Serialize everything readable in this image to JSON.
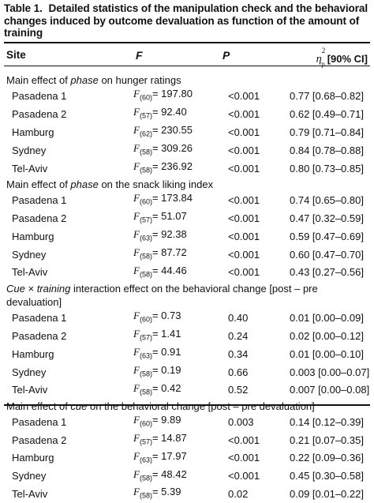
{
  "caption": {
    "label": "Table 1.",
    "text": "Detailed statistics of the manipulation check and the behavioral changes induced by outcome devaluation as function of the amount of training"
  },
  "header": {
    "site": "Site",
    "f": "F",
    "p": "P",
    "effect_symbol": "η",
    "effect_sup": "2",
    "effect_sub": "p",
    "ci": "[90% CI]"
  },
  "sections": [
    {
      "title_pre": "Main effect of ",
      "title_em": "phase",
      "title_post": " on hunger ratings",
      "rows": [
        {
          "site": "Pasadena 1",
          "df": "(60)",
          "f": "= 197.80",
          "p": "<0.001",
          "eta": "0.77 [0.68–0.82]"
        },
        {
          "site": "Pasadena 2",
          "df": "(57)",
          "f": "= 92.40",
          "p": "<0.001",
          "eta": "0.62 [0.49–0.71]"
        },
        {
          "site": "Hamburg",
          "df": "(62)",
          "f": "= 230.55",
          "p": "<0.001",
          "eta": "0.79 [0.71–0.84]"
        },
        {
          "site": "Sydney",
          "df": "(58)",
          "f": "= 309.26",
          "p": "<0.001",
          "eta": "0.84 [0.78–0.88]"
        },
        {
          "site": "Tel-Aviv",
          "df": "(58)",
          "f": "= 236.92",
          "p": "<0.001",
          "eta": "0.80 [0.73–0.85]"
        }
      ]
    },
    {
      "title_pre": "Main effect of ",
      "title_em": "phase",
      "title_post": " on the snack liking index",
      "rows": [
        {
          "site": "Pasadena 1",
          "df": "(60)",
          "f": "= 173.84",
          "p": "<0.001",
          "eta": "0.74 [0.65–0.80]"
        },
        {
          "site": "Pasadena 2",
          "df": "(57)",
          "f": "= 51.07",
          "p": "<0.001",
          "eta": "0.47 [0.32–0.59]"
        },
        {
          "site": "Hamburg",
          "df": "(63)",
          "f": "= 92.38",
          "p": "<0.001",
          "eta": "0.59 [0.47–0.69]"
        },
        {
          "site": "Sydney",
          "df": "(58)",
          "f": "= 87.72",
          "p": "<0.001",
          "eta": "0.60 [0.47–0.70]"
        },
        {
          "site": "Tel-Aviv",
          "df": "(58)",
          "f": "= 44.46",
          "p": "<0.001",
          "eta": "0.43 [0.27–0.56]"
        }
      ]
    },
    {
      "title_pre": "",
      "title_em": "Cue",
      "title_mid": " × ",
      "title_em2": "training",
      "title_post": " interaction effect on the behavioral change [post – pre devaluation]",
      "rows": [
        {
          "site": "Pasadena 1",
          "df": "(60)",
          "f": "= 0.73",
          "p": "0.40",
          "eta": "0.01 [0.00–0.09]"
        },
        {
          "site": "Pasadena 2",
          "df": "(57)",
          "f": "= 1.41",
          "p": "0.24",
          "eta": "0.02 [0.00–0.12]"
        },
        {
          "site": "Hamburg",
          "df": "(63)",
          "f": "= 0.91",
          "p": "0.34",
          "eta": "0.01 [0.00–0.10]"
        },
        {
          "site": "Sydney",
          "df": "(58)",
          "f": "= 0.19",
          "p": "0.66",
          "eta": "0.003 [0.00–0.07]"
        },
        {
          "site": "Tel-Aviv",
          "df": "(58)",
          "f": "= 0.42",
          "p": "0.52",
          "eta": "0.007 [0.00–0.08]"
        }
      ]
    },
    {
      "title_pre": "Main effect of ",
      "title_em": "cue",
      "title_post": " on the behavioral change [post – pre devaluation]",
      "rows": [
        {
          "site": "Pasadena 1",
          "df": "(60)",
          "f": "= 9.89",
          "p": "0.003",
          "eta": "0.14 [0.12–0.39]"
        },
        {
          "site": "Pasadena 2",
          "df": "(57)",
          "f": "= 14.87",
          "p": "<0.001",
          "eta": "0.21 [0.07–0.35]"
        },
        {
          "site": "Hamburg",
          "df": "(63)",
          "f": "= 17.97",
          "p": "<0.001",
          "eta": "0.22 [0.09–0.36]"
        },
        {
          "site": "Sydney",
          "df": "(58)",
          "f": "= 48.42",
          "p": "<0.001",
          "eta": "0.45 [0.30–0.58]"
        },
        {
          "site": "Tel-Aviv",
          "df": "(58)",
          "f": "= 5.39",
          "p": "0.02",
          "eta": "0.09 [0.01–0.22]"
        }
      ]
    }
  ]
}
